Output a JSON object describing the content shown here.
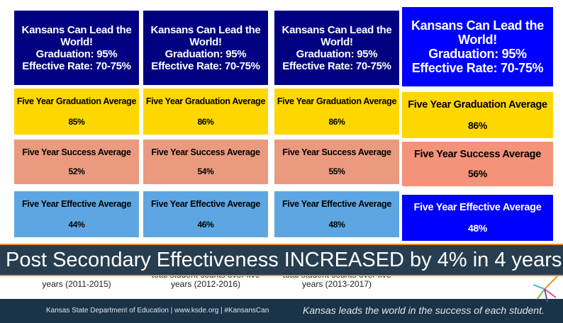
{
  "columns": [
    {
      "header": [
        "Kansans Can Lead the",
        "World!",
        "Graduation: 95%",
        "Effective Rate: 70-75%"
      ],
      "graduation": {
        "label": "Five Year Graduation Average",
        "value": "85%"
      },
      "success": {
        "label": "Five Year Success Average",
        "value": "52%"
      },
      "effective": {
        "label": "Five Year Effective Average",
        "value": "44%"
      },
      "note": [
        "years (2011-2015)"
      ]
    },
    {
      "header": [
        "Kansans Can Lead the",
        "World!",
        "Graduation: 95%",
        "Effective Rate: 70-75%"
      ],
      "graduation": {
        "label": "Five Year Graduation Average",
        "value": "86%"
      },
      "success": {
        "label": "Five Year Success Average",
        "value": "54%"
      },
      "effective": {
        "label": "Five Year Effective Average",
        "value": "46%"
      },
      "note": [
        "total student counts over five",
        "years (2012-2016)"
      ]
    },
    {
      "header": [
        "Kansans Can Lead the",
        "World!",
        "Graduation: 95%",
        "Effective Rate: 70-75%"
      ],
      "graduation": {
        "label": "Five Year Graduation Average",
        "value": "86%"
      },
      "success": {
        "label": "Five Year Success Average",
        "value": "55%"
      },
      "effective": {
        "label": "Five Year Effective Average",
        "value": "48%"
      },
      "note": [
        "total student counts over five",
        "years (2013-2017)"
      ]
    },
    {
      "header": [
        "Kansans Can Lead the",
        "World!",
        "Graduation: 95%",
        "Effective Rate: 70-75%"
      ],
      "graduation": {
        "label": "Five Year Graduation Average",
        "value": "86%"
      },
      "success": {
        "label": "Five Year Success Average",
        "value": "56%"
      },
      "effective": {
        "label": "Five Year Effective Average",
        "value": "48%"
      },
      "note": []
    }
  ],
  "banner": "Post Secondary Effectiveness INCREASED by 4% in 4 years",
  "footer": {
    "left": "Kansas State Department of Education | www.ksde.org | #KansansCan",
    "right": "Kansas leads the world in the success of each student."
  }
}
